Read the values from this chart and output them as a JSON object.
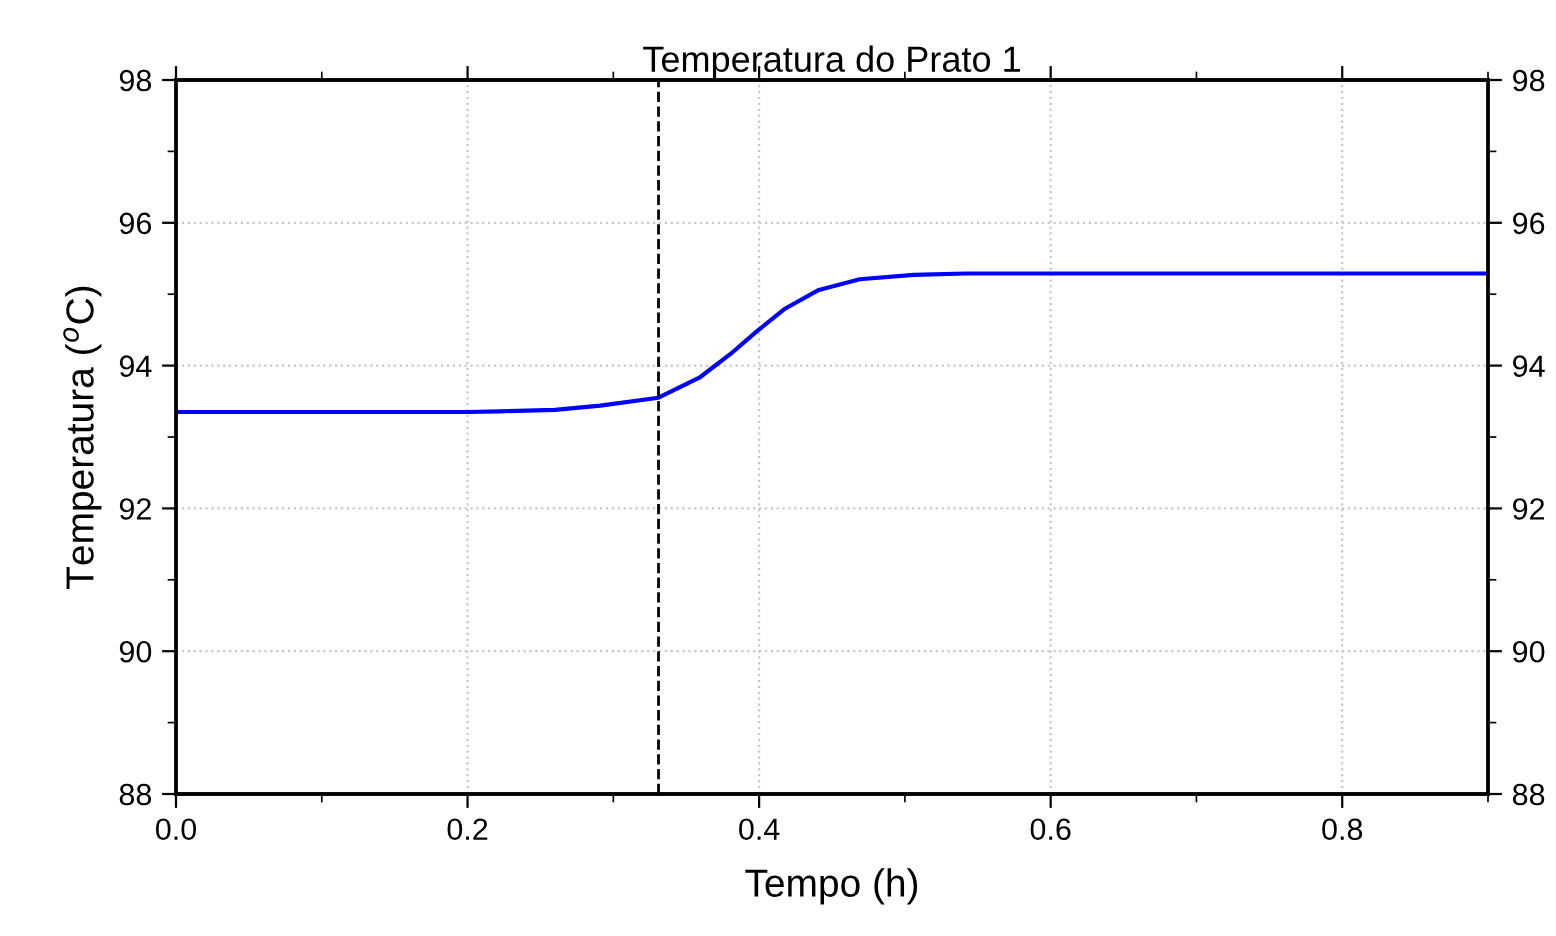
{
  "chart_data": {
    "type": "line",
    "title": "Temperatura do Prato 1",
    "xlabel": "Tempo (h)",
    "ylabel": "Temperatura ($^{o}$C)",
    "series": [
      {
        "color": "#0000ff",
        "x": [
          0,
          0.1,
          0.2,
          0.222,
          0.26,
          0.291,
          0.331,
          0.359,
          0.382,
          0.399,
          0.418,
          0.441,
          0.469,
          0.506,
          0.542,
          0.6,
          0.7,
          0.8,
          0.9
        ],
        "values": [
          93.35,
          93.35,
          93.35,
          93.36,
          93.38,
          93.44,
          93.55,
          93.83,
          94.19,
          94.49,
          94.8,
          95.06,
          95.21,
          95.27,
          95.29,
          95.29,
          95.29,
          95.29,
          95.29
        ]
      }
    ],
    "xlim": [
      0,
      0.9
    ],
    "xticks": [
      {
        "value": 0,
        "label": "0.0"
      },
      {
        "value": 0.2,
        "label": "0.2"
      },
      {
        "value": 0.4,
        "label": "0.4"
      },
      {
        "value": 0.6,
        "label": "0.6"
      },
      {
        "value": 0.8,
        "label": "0.8"
      }
    ],
    "ylim": [
      88,
      98
    ],
    "yticks": [
      88,
      90,
      92,
      94,
      96,
      98
    ],
    "y2lim": [
      88,
      98
    ],
    "y2ticks": [
      88,
      90,
      92,
      94,
      96,
      98
    ],
    "ref_lines": [
      {
        "axis": "x",
        "value": 0.331,
        "color": "#000000",
        "line_style": "dashed"
      }
    ],
    "grid": true,
    "legend": false,
    "marker": "none",
    "line_style": "solid"
  }
}
